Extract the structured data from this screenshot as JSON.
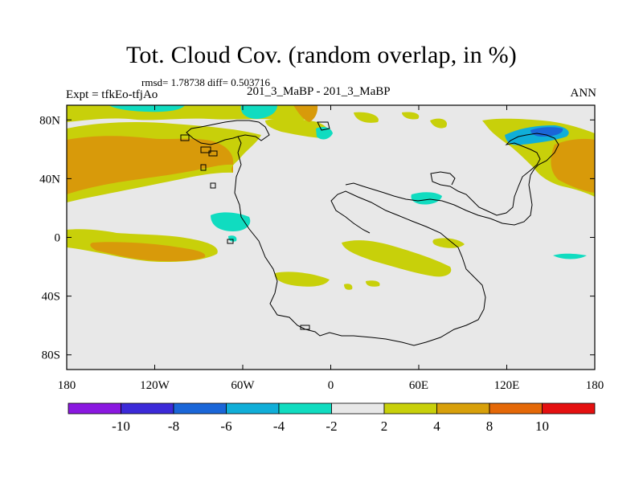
{
  "title": "Tot. Cloud Cov. (random overlap, in %)",
  "stats": "rmsd= 1.78738 diff= 0.503716",
  "left_label": "Expt = tfkEo-tfjAo",
  "center_label": "201_3_MaBP - 201_3_MaBP",
  "right_label": "ANN",
  "map": {
    "x_ticks": [
      {
        "value": -180,
        "label": "180"
      },
      {
        "value": -120,
        "label": "120W"
      },
      {
        "value": -60,
        "label": "60W"
      },
      {
        "value": 0,
        "label": "0"
      },
      {
        "value": 60,
        "label": "60E"
      },
      {
        "value": 120,
        "label": "120E"
      },
      {
        "value": 180,
        "label": "180"
      }
    ],
    "y_ticks": [
      {
        "value": 80,
        "label": "80N"
      },
      {
        "value": 40,
        "label": "40N"
      },
      {
        "value": 0,
        "label": "0"
      },
      {
        "value": -40,
        "label": "40S"
      },
      {
        "value": -80,
        "label": "80S"
      }
    ],
    "lon_range": [
      -180,
      180
    ],
    "lat_range": [
      -90,
      90
    ],
    "background_color": "#e8e8e8"
  },
  "colorbar": {
    "colors": [
      "#8a18e0",
      "#3c2ad8",
      "#1a66d8",
      "#10aed8",
      "#10dcc0",
      "#e8e8e8",
      "#c8d00a",
      "#d8a00a",
      "#e46808",
      "#e41010"
    ],
    "labels": [
      "-10",
      "-8",
      "-6",
      "-4",
      "-2",
      "2",
      "4",
      "8",
      "10"
    ]
  }
}
